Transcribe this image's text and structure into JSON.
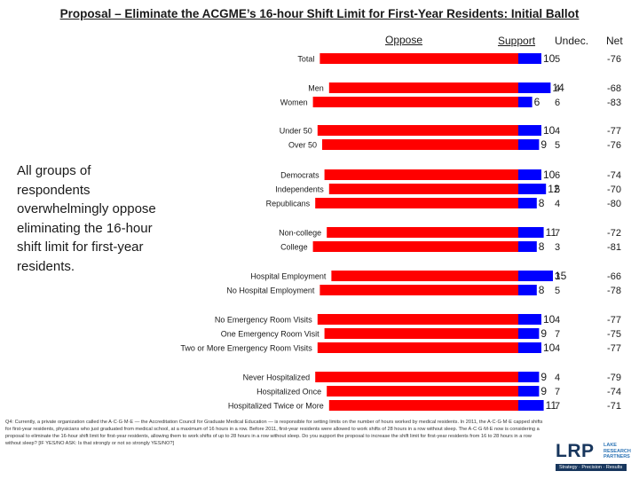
{
  "title": "Proposal – Eliminate the ACGME’s 16-hour Shift Limit for First-Year Residents: Initial Ballot",
  "headers": {
    "oppose": "Oppose",
    "support": "Support",
    "undec": "Undec.",
    "net": "Net"
  },
  "callout": "All groups of respondents overwhelmingly oppose eliminating the 16-hour shift limit for first-year residents.",
  "colors": {
    "oppose_bar": "#ff0000",
    "support_bar": "#0000ff",
    "text": "#1a1a1a"
  },
  "chart_data": {
    "type": "bar",
    "orientation": "horizontal-diverging",
    "series": [
      {
        "name": "Oppose",
        "color": "#ff0000"
      },
      {
        "name": "Support",
        "color": "#0000ff"
      }
    ],
    "rows": [
      {
        "label": "Total",
        "oppose": 86,
        "support": 10,
        "undec": "5",
        "net": "-76"
      },
      {
        "label": "Men",
        "oppose": 82,
        "support": 14,
        "undec": "4",
        "net": "-68"
      },
      {
        "label": "Women",
        "oppose": 89,
        "support": 6,
        "undec": "6",
        "net": "-83"
      },
      {
        "label": "Under 50",
        "oppose": 87,
        "support": 10,
        "undec": "4",
        "net": "-77"
      },
      {
        "label": "Over 50",
        "oppose": 85,
        "support": 9,
        "undec": "5",
        "net": "-76"
      },
      {
        "label": "Democrats",
        "oppose": 84,
        "support": 10,
        "undec": "6",
        "net": "-74"
      },
      {
        "label": "Independents",
        "oppose": 82,
        "support": 12,
        "undec": "5",
        "net": "-70"
      },
      {
        "label": "Republicans",
        "oppose": 88,
        "support": 8,
        "undec": "4",
        "net": "-80"
      },
      {
        "label": "Non-college",
        "oppose": 83,
        "support": 11,
        "undec": "7",
        "net": "-72"
      },
      {
        "label": "College",
        "oppose": 89,
        "support": 8,
        "undec": "3",
        "net": "-81"
      },
      {
        "label": "Hospital Employment",
        "oppose": 81,
        "support": 15,
        "undec": "3",
        "net": "-66"
      },
      {
        "label": "No Hospital Employment",
        "oppose": 86,
        "support": 8,
        "undec": "5",
        "net": "-78"
      },
      {
        "label": "No Emergency Room Visits",
        "oppose": 87,
        "support": 10,
        "undec": "4",
        "net": "-77"
      },
      {
        "label": "One Emergency Room Visit",
        "oppose": 84,
        "support": 9,
        "undec": "7",
        "net": "-75"
      },
      {
        "label": "Two or More Emergency Room Visits",
        "oppose": 87,
        "support": 10,
        "undec": "4",
        "net": "-77"
      },
      {
        "label": "Never Hospitalized",
        "oppose": 88,
        "support": 9,
        "undec": "4",
        "net": "-79"
      },
      {
        "label": "Hospitalized Once",
        "oppose": 83,
        "support": 9,
        "undec": "7",
        "net": "-74"
      },
      {
        "label": "Hospitalized Twice or More",
        "oppose": 82,
        "support": 11,
        "undec": "7",
        "net": "-71"
      }
    ]
  },
  "footnote": "Q4: Currently, a private organization called the A·C·G·M·E — the Accreditation Council for Graduate Medical Education — is responsible for setting limits on the number of hours worked by medical residents. In 2011, the A·C·G·M·E capped shifts for first-year residents, physicians who just graduated from medical school, at a maximum of 16 hours in a row. Before 2011, first-year residents were allowed to work shifts of 28 hours in a row without sleep. The A·C·G·M·E now is considering a proposal to eliminate the 16-hour shift limit for first-year residents, allowing them to work shifts of up to 28 hours in a row without sleep. Do you support the proposal to increase the shift limit for first-year residents from 16 to 28 hours in a row without sleep? [IF YES/NO ASK: Is that strongly or not so strongly YES/NO?]",
  "logo": {
    "name": "LRP",
    "subtitle": "LAKE RESEARCH PARTNERS",
    "tagline": "Strategy · Precision · Results"
  }
}
